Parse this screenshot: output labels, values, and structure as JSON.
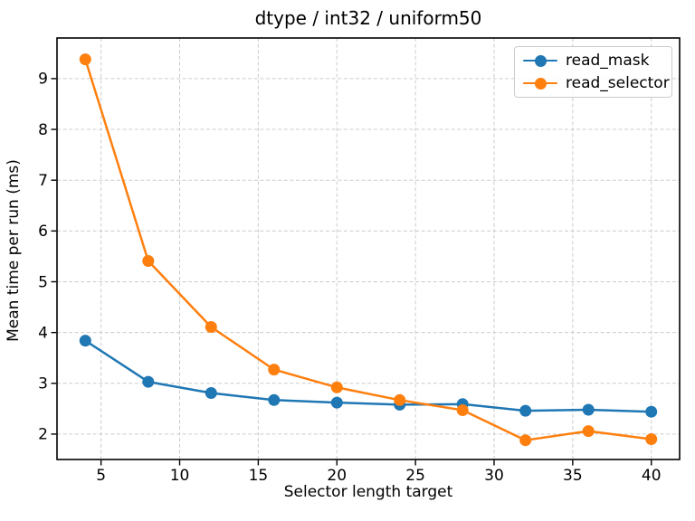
{
  "figure": {
    "title": "dtype / int32 / uniform50"
  },
  "chart_data": {
    "type": "line",
    "title": "dtype / int32 / uniform50",
    "xlabel": "Selector length target",
    "ylabel": "Mean time per run (ms)",
    "x": [
      4,
      8,
      12,
      16,
      20,
      24,
      28,
      32,
      36,
      40
    ],
    "series": [
      {
        "name": "read_mask",
        "color": "#1f77b4",
        "values": [
          3.84,
          3.03,
          2.81,
          2.67,
          2.62,
          2.58,
          2.59,
          2.46,
          2.48,
          2.44
        ]
      },
      {
        "name": "read_selector",
        "color": "#ff7f0e",
        "values": [
          9.38,
          5.41,
          4.11,
          3.27,
          2.92,
          2.67,
          2.47,
          1.88,
          2.06,
          1.9
        ]
      }
    ],
    "xlim": [
      2.2,
      41.8
    ],
    "ylim": [
      1.5,
      9.8
    ],
    "xticks": [
      5,
      10,
      15,
      20,
      25,
      30,
      35,
      40
    ],
    "yticks": [
      2,
      3,
      4,
      5,
      6,
      7,
      8,
      9
    ],
    "grid": true,
    "grid_style": "dashed",
    "marker": "circle",
    "legend": {
      "position": "upper right",
      "entries": [
        "read_mask",
        "read_selector"
      ]
    }
  },
  "colors": {
    "background": "#ffffff",
    "grid": "#cccccc",
    "spine": "#000000",
    "tick_text": "#000000",
    "legend_border": "#cccccc"
  }
}
